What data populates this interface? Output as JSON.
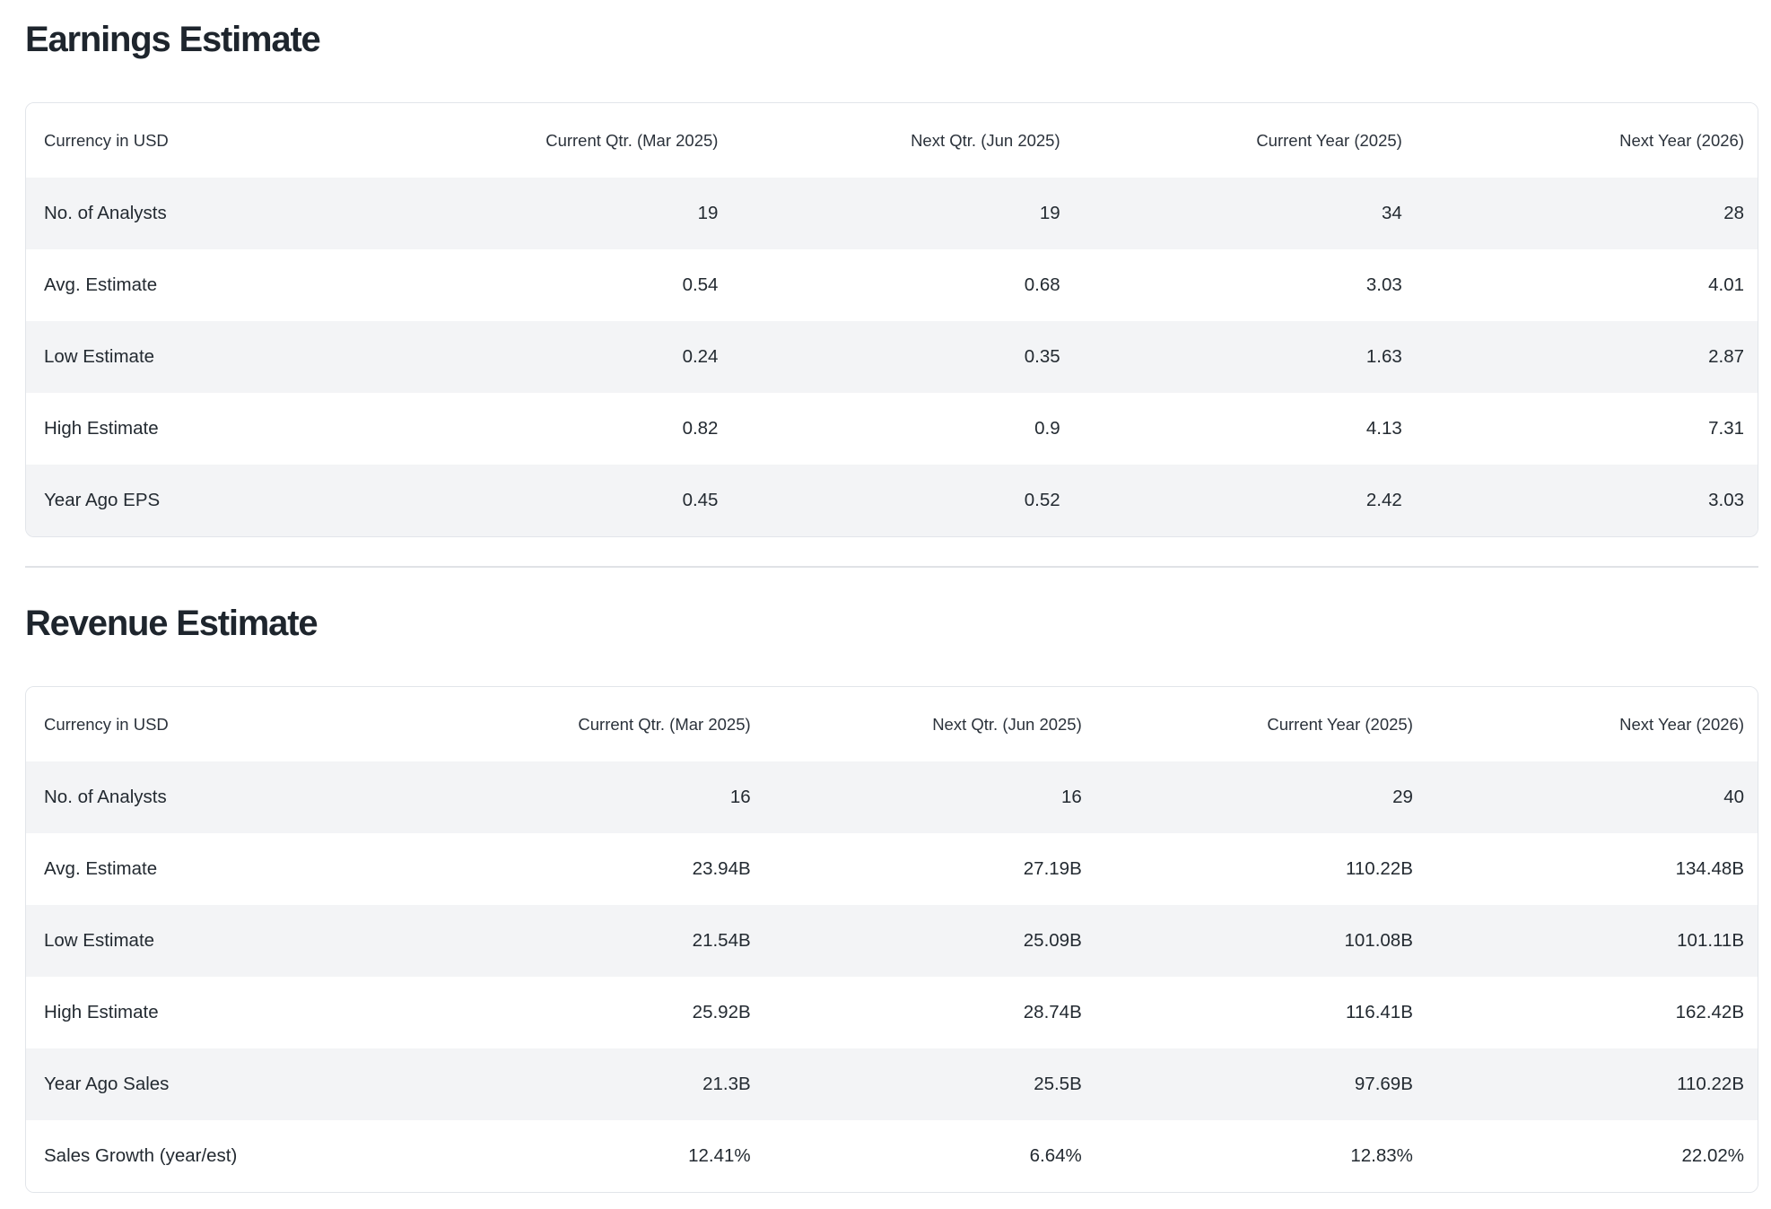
{
  "colors": {
    "heading_text": "#1e252d",
    "body_text": "#232a31",
    "row_alt_bg": "#f3f4f6",
    "card_border": "#e2e5ea",
    "divider": "#e0e2e6",
    "page_bg": "#ffffff"
  },
  "earnings": {
    "title": "Earnings Estimate",
    "currency_label": "Currency in USD",
    "columns": [
      "Current Qtr. (Mar 2025)",
      "Next Qtr. (Jun 2025)",
      "Current Year (2025)",
      "Next Year (2026)"
    ],
    "rows": [
      {
        "label": "No. of Analysts",
        "values": [
          "19",
          "19",
          "34",
          "28"
        ]
      },
      {
        "label": "Avg. Estimate",
        "values": [
          "0.54",
          "0.68",
          "3.03",
          "4.01"
        ]
      },
      {
        "label": "Low Estimate",
        "values": [
          "0.24",
          "0.35",
          "1.63",
          "2.87"
        ]
      },
      {
        "label": "High Estimate",
        "values": [
          "0.82",
          "0.9",
          "4.13",
          "7.31"
        ]
      },
      {
        "label": "Year Ago EPS",
        "values": [
          "0.45",
          "0.52",
          "2.42",
          "3.03"
        ]
      }
    ]
  },
  "revenue": {
    "title": "Revenue Estimate",
    "currency_label": "Currency in USD",
    "columns": [
      "Current Qtr. (Mar 2025)",
      "Next Qtr. (Jun 2025)",
      "Current Year (2025)",
      "Next Year (2026)"
    ],
    "rows": [
      {
        "label": "No. of Analysts",
        "values": [
          "16",
          "16",
          "29",
          "40"
        ]
      },
      {
        "label": "Avg. Estimate",
        "values": [
          "23.94B",
          "27.19B",
          "110.22B",
          "134.48B"
        ]
      },
      {
        "label": "Low Estimate",
        "values": [
          "21.54B",
          "25.09B",
          "101.08B",
          "101.11B"
        ]
      },
      {
        "label": "High Estimate",
        "values": [
          "25.92B",
          "28.74B",
          "116.41B",
          "162.42B"
        ]
      },
      {
        "label": "Year Ago Sales",
        "values": [
          "21.3B",
          "25.5B",
          "97.69B",
          "110.22B"
        ]
      },
      {
        "label": "Sales Growth (year/est)",
        "values": [
          "12.41%",
          "6.64%",
          "12.83%",
          "22.02%"
        ]
      }
    ]
  }
}
